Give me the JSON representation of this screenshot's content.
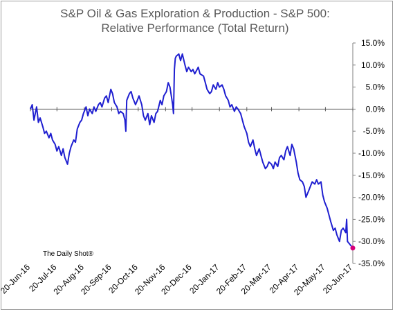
{
  "chart_data": {
    "type": "line",
    "title": "S&P Oil & Gas Exploration & Production - S&P 500:",
    "subtitle": "Relative Performance (Total Return)",
    "xlabel": "",
    "ylabel": "",
    "y_axis_side": "right",
    "ylim": [
      -35,
      15
    ],
    "y_ticks": [
      "15.0%",
      "10.0%",
      "5.0%",
      "0.0%",
      "-5.0%",
      "-10.0%",
      "-15.0%",
      "-20.0%",
      "-25.0%",
      "-30.0%",
      "-35.0%"
    ],
    "y_tick_values": [
      15,
      10,
      5,
      0,
      -5,
      -10,
      -15,
      -20,
      -25,
      -30,
      -35
    ],
    "x_ticks": [
      "20-Jun-16",
      "20-Jul-16",
      "20-Aug-16",
      "20-Sep-16",
      "20-Oct-16",
      "20-Nov-16",
      "20-Dec-16",
      "20-Jan-17",
      "20-Feb-17",
      "20-Mar-17",
      "20-Apr-17",
      "20-May-17",
      "20-Jun-17"
    ],
    "x_tick_dates": [
      "2016-06-20",
      "2016-07-20",
      "2016-08-20",
      "2016-09-20",
      "2016-10-20",
      "2016-11-20",
      "2016-12-20",
      "2017-01-20",
      "2017-02-20",
      "2017-03-20",
      "2017-04-20",
      "2017-05-20",
      "2017-06-20"
    ],
    "grid": false,
    "zero_line": true,
    "line_color": "#1f1fd0",
    "end_marker_color": "#d6007a",
    "series": [
      {
        "values": [
          [
            "2016-06-20",
            0.0
          ],
          [
            "2016-06-22",
            1.0
          ],
          [
            "2016-06-24",
            -2.5
          ],
          [
            "2016-06-27",
            0.5
          ],
          [
            "2016-06-29",
            -3.0
          ],
          [
            "2016-07-01",
            -2.0
          ],
          [
            "2016-07-04",
            -4.0
          ],
          [
            "2016-07-06",
            -5.5
          ],
          [
            "2016-07-08",
            -5.0
          ],
          [
            "2016-07-11",
            -6.5
          ],
          [
            "2016-07-13",
            -5.5
          ],
          [
            "2016-07-15",
            -7.0
          ],
          [
            "2016-07-18",
            -8.0
          ],
          [
            "2016-07-20",
            -9.5
          ],
          [
            "2016-07-22",
            -8.5
          ],
          [
            "2016-07-25",
            -10.5
          ],
          [
            "2016-07-27",
            -9.0
          ],
          [
            "2016-07-29",
            -11.0
          ],
          [
            "2016-08-01",
            -12.5
          ],
          [
            "2016-08-03",
            -10.0
          ],
          [
            "2016-08-05",
            -8.5
          ],
          [
            "2016-08-08",
            -7.0
          ],
          [
            "2016-08-10",
            -7.5
          ],
          [
            "2016-08-12",
            -4.5
          ],
          [
            "2016-08-15",
            -3.0
          ],
          [
            "2016-08-17",
            -2.5
          ],
          [
            "2016-08-19",
            -1.0
          ],
          [
            "2016-08-22",
            0.5
          ],
          [
            "2016-08-24",
            -1.5
          ],
          [
            "2016-08-26",
            0.0
          ],
          [
            "2016-08-29",
            -1.0
          ],
          [
            "2016-08-31",
            0.5
          ],
          [
            "2016-09-02",
            -0.5
          ],
          [
            "2016-09-05",
            1.0
          ],
          [
            "2016-09-07",
            1.5
          ],
          [
            "2016-09-09",
            0.5
          ],
          [
            "2016-09-12",
            2.5
          ],
          [
            "2016-09-14",
            3.0
          ],
          [
            "2016-09-16",
            1.5
          ],
          [
            "2016-09-19",
            4.5
          ],
          [
            "2016-09-21",
            3.5
          ],
          [
            "2016-09-23",
            1.5
          ],
          [
            "2016-09-26",
            0.5
          ],
          [
            "2016-09-28",
            -1.0
          ],
          [
            "2016-09-30",
            -0.5
          ],
          [
            "2016-10-03",
            -1.0
          ],
          [
            "2016-10-05",
            -2.5
          ],
          [
            "2016-10-06",
            -5.0
          ],
          [
            "2016-10-07",
            2.0
          ],
          [
            "2016-10-10",
            3.5
          ],
          [
            "2016-10-12",
            4.0
          ],
          [
            "2016-10-14",
            2.5
          ],
          [
            "2016-10-17",
            1.0
          ],
          [
            "2016-10-19",
            2.0
          ],
          [
            "2016-10-21",
            3.0
          ],
          [
            "2016-10-24",
            1.0
          ],
          [
            "2016-10-26",
            -1.5
          ],
          [
            "2016-10-28",
            -2.5
          ],
          [
            "2016-10-31",
            -1.0
          ],
          [
            "2016-11-02",
            -3.5
          ],
          [
            "2016-11-04",
            -1.5
          ],
          [
            "2016-11-07",
            -3.0
          ],
          [
            "2016-11-09",
            -1.0
          ],
          [
            "2016-11-11",
            -0.5
          ],
          [
            "2016-11-14",
            2.0
          ],
          [
            "2016-11-16",
            1.0
          ],
          [
            "2016-11-18",
            3.0
          ],
          [
            "2016-11-21",
            4.0
          ],
          [
            "2016-11-23",
            6.0
          ],
          [
            "2016-11-25",
            5.0
          ],
          [
            "2016-11-28",
            1.0
          ],
          [
            "2016-11-29",
            -1.0
          ],
          [
            "2016-11-30",
            9.0
          ],
          [
            "2016-12-01",
            11.5
          ],
          [
            "2016-12-02",
            12.0
          ],
          [
            "2016-12-05",
            12.5
          ],
          [
            "2016-12-07",
            11.0
          ],
          [
            "2016-12-09",
            12.5
          ],
          [
            "2016-12-12",
            10.0
          ],
          [
            "2016-12-14",
            8.5
          ],
          [
            "2016-12-16",
            9.5
          ],
          [
            "2016-12-19",
            8.5
          ],
          [
            "2016-12-21",
            9.0
          ],
          [
            "2016-12-23",
            8.0
          ],
          [
            "2016-12-27",
            9.5
          ],
          [
            "2016-12-29",
            8.0
          ],
          [
            "2017-01-02",
            7.5
          ],
          [
            "2017-01-04",
            6.0
          ],
          [
            "2017-01-06",
            4.5
          ],
          [
            "2017-01-09",
            3.5
          ],
          [
            "2017-01-11",
            4.0
          ],
          [
            "2017-01-13",
            5.5
          ],
          [
            "2017-01-16",
            4.5
          ],
          [
            "2017-01-18",
            6.0
          ],
          [
            "2017-01-20",
            5.0
          ],
          [
            "2017-01-23",
            5.5
          ],
          [
            "2017-01-25",
            4.5
          ],
          [
            "2017-01-27",
            3.0
          ],
          [
            "2017-01-30",
            2.0
          ],
          [
            "2017-02-01",
            0.5
          ],
          [
            "2017-02-03",
            1.0
          ],
          [
            "2017-02-06",
            -0.5
          ],
          [
            "2017-02-08",
            0.5
          ],
          [
            "2017-02-10",
            0.0
          ],
          [
            "2017-02-13",
            -1.0
          ],
          [
            "2017-02-15",
            -2.5
          ],
          [
            "2017-02-17",
            -4.0
          ],
          [
            "2017-02-20",
            -5.5
          ],
          [
            "2017-02-22",
            -7.5
          ],
          [
            "2017-02-24",
            -8.5
          ],
          [
            "2017-02-27",
            -7.0
          ],
          [
            "2017-03-01",
            -9.0
          ],
          [
            "2017-03-03",
            -10.5
          ],
          [
            "2017-03-06",
            -9.0
          ],
          [
            "2017-03-08",
            -10.5
          ],
          [
            "2017-03-10",
            -12.0
          ],
          [
            "2017-03-13",
            -13.5
          ],
          [
            "2017-03-15",
            -13.0
          ],
          [
            "2017-03-17",
            -12.0
          ],
          [
            "2017-03-20",
            -12.5
          ],
          [
            "2017-03-22",
            -13.5
          ],
          [
            "2017-03-24",
            -12.0
          ],
          [
            "2017-03-27",
            -13.0
          ],
          [
            "2017-03-29",
            -11.0
          ],
          [
            "2017-03-31",
            -10.5
          ],
          [
            "2017-04-03",
            -11.5
          ],
          [
            "2017-04-05",
            -9.5
          ],
          [
            "2017-04-07",
            -8.5
          ],
          [
            "2017-04-10",
            -10.5
          ],
          [
            "2017-04-12",
            -8.0
          ],
          [
            "2017-04-14",
            -9.0
          ],
          [
            "2017-04-17",
            -12.0
          ],
          [
            "2017-04-19",
            -14.5
          ],
          [
            "2017-04-21",
            -16.0
          ],
          [
            "2017-04-24",
            -16.5
          ],
          [
            "2017-04-26",
            -17.5
          ],
          [
            "2017-04-28",
            -20.0
          ],
          [
            "2017-05-01",
            -18.5
          ],
          [
            "2017-05-03",
            -17.5
          ],
          [
            "2017-05-05",
            -16.5
          ],
          [
            "2017-05-08",
            -17.0
          ],
          [
            "2017-05-10",
            -16.0
          ],
          [
            "2017-05-12",
            -17.0
          ],
          [
            "2017-05-15",
            -16.5
          ],
          [
            "2017-05-17",
            -19.5
          ],
          [
            "2017-05-19",
            -21.0
          ],
          [
            "2017-05-22",
            -22.5
          ],
          [
            "2017-05-24",
            -24.0
          ],
          [
            "2017-05-26",
            -25.5
          ],
          [
            "2017-05-29",
            -27.5
          ],
          [
            "2017-05-31",
            -27.0
          ],
          [
            "2017-06-02",
            -28.5
          ],
          [
            "2017-06-05",
            -30.0
          ],
          [
            "2017-06-07",
            -27.5
          ],
          [
            "2017-06-09",
            -27.0
          ],
          [
            "2017-06-12",
            -28.0
          ],
          [
            "2017-06-13",
            -25.0
          ],
          [
            "2017-06-14",
            -30.0
          ],
          [
            "2017-06-16",
            -30.5
          ],
          [
            "2017-06-20",
            -31.5
          ]
        ]
      }
    ],
    "annotation": "The Daily Shot®"
  }
}
